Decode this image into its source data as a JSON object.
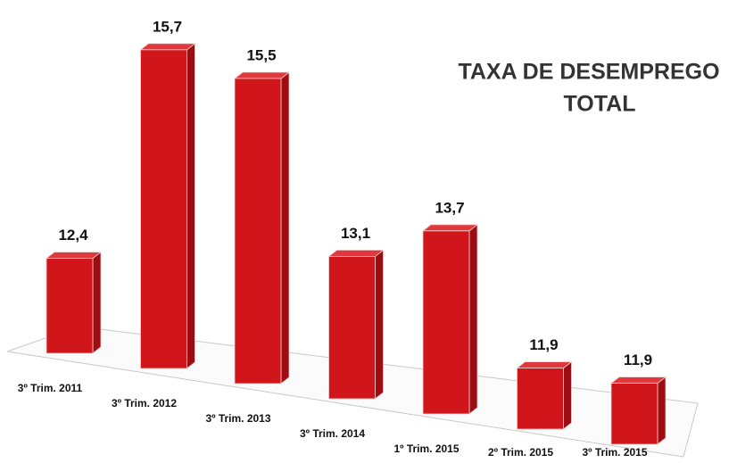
{
  "chart_data": {
    "type": "bar3d",
    "title": [
      "TAXA DE DESEMPREGO",
      "TOTAL"
    ],
    "categories": [
      "3º Trim. 2011",
      "3º Trim. 2012",
      "3º Trim. 2013",
      "3º Trim. 2014",
      "1º Trim. 2015",
      "2º Trim. 2015",
      "3º Trim. 2015"
    ],
    "values": [
      12.4,
      15.7,
      15.5,
      13.1,
      13.7,
      11.9,
      11.9
    ],
    "value_labels": [
      "12,4",
      "15,7",
      "15,5",
      "13,1",
      "13,7",
      "11,9",
      "11,9"
    ],
    "color": "#d1161b",
    "ylim": [
      11,
      16
    ]
  }
}
